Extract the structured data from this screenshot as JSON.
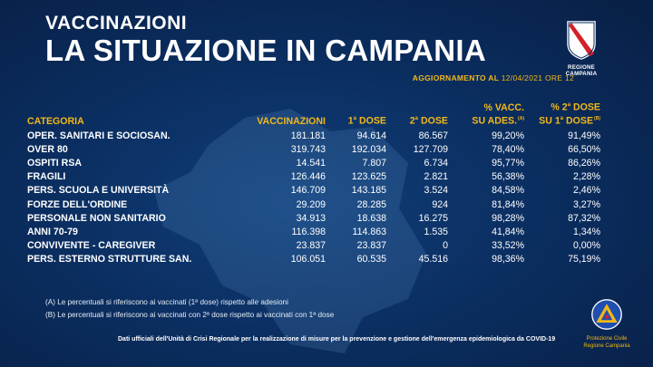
{
  "header": {
    "kicker": "VACCINAZIONI",
    "title": "LA SITUAZIONE IN CAMPANIA",
    "update_prefix": "AGGIORNAMENTO AL",
    "update_date": "12/04/2021 ORE 12"
  },
  "logo": {
    "text": "REGIONE CAMPANIA"
  },
  "table": {
    "headers": {
      "categoria": "CATEGORIA",
      "vaccinazioni": "VACCINAZIONI",
      "dose1_num": "1",
      "dose1_sup": "a",
      "dose1_label": "DOSE",
      "dose2_num": "2",
      "dose2_sup": "a",
      "dose2_label": "DOSE",
      "pct_vacc_line1": "% VACC.",
      "pct_vacc_line2": "SU ADES.",
      "pct_vacc_note": "(A)",
      "pct_dose_line1_pre": "% 2",
      "pct_dose_line1_sup": "a",
      "pct_dose_line1_post": " DOSE",
      "pct_dose_line2_pre": "SU 1",
      "pct_dose_line2_sup": "a",
      "pct_dose_line2_post": " DOSE",
      "pct_dose_note": "(B)"
    },
    "rows": [
      {
        "categoria": "OPER. SANITARI E SOCIOSAN.",
        "vaccinazioni": "181.181",
        "dose1": "94.614",
        "dose2": "86.567",
        "pct_vacc": "99,20%",
        "pct_dose": "91,49%"
      },
      {
        "categoria": "OVER 80",
        "vaccinazioni": "319.743",
        "dose1": "192.034",
        "dose2": "127.709",
        "pct_vacc": "78,40%",
        "pct_dose": "66,50%"
      },
      {
        "categoria": "OSPITI RSA",
        "vaccinazioni": "14.541",
        "dose1": "7.807",
        "dose2": "6.734",
        "pct_vacc": "95,77%",
        "pct_dose": "86,26%"
      },
      {
        "categoria": "FRAGILI",
        "vaccinazioni": "126.446",
        "dose1": "123.625",
        "dose2": "2.821",
        "pct_vacc": "56,38%",
        "pct_dose": "2,28%"
      },
      {
        "categoria": "PERS. SCUOLA E UNIVERSITÀ",
        "vaccinazioni": "146.709",
        "dose1": "143.185",
        "dose2": "3.524",
        "pct_vacc": "84,58%",
        "pct_dose": "2,46%"
      },
      {
        "categoria": "FORZE DELL'ORDINE",
        "vaccinazioni": "29.209",
        "dose1": "28.285",
        "dose2": "924",
        "pct_vacc": "81,84%",
        "pct_dose": "3,27%"
      },
      {
        "categoria": "PERSONALE NON SANITARIO",
        "vaccinazioni": "34.913",
        "dose1": "18.638",
        "dose2": "16.275",
        "pct_vacc": "98,28%",
        "pct_dose": "87,32%"
      },
      {
        "categoria": "ANNI 70-79",
        "vaccinazioni": "116.398",
        "dose1": "114.863",
        "dose2": "1.535",
        "pct_vacc": "41,84%",
        "pct_dose": "1,34%"
      },
      {
        "categoria": "CONVIVENTE - CAREGIVER",
        "vaccinazioni": "23.837",
        "dose1": "23.837",
        "dose2": "0",
        "pct_vacc": "33,52%",
        "pct_dose": "0,00%"
      },
      {
        "categoria": "PERS. ESTERNO STRUTTURE SAN.",
        "vaccinazioni": "106.051",
        "dose1": "60.535",
        "dose2": "45.516",
        "pct_vacc": "98,36%",
        "pct_dose": "75,19%"
      }
    ]
  },
  "footnotes": {
    "a": "(A) Le percentuali si riferiscono ai vaccinati (1ª dose) rispetto alle adesioni",
    "b": "(B) Le percentuali si riferiscono ai vaccinati con 2ª dose rispetto ai vaccinati con 1ª dose"
  },
  "source": "Dati ufficiali dell'Unità di Crisi Regionale per la realizzazione di misure per la prevenzione e gestione dell'emergenza epidemiologica da COVID-19",
  "pc_logo": {
    "line1": "Protezione Civile",
    "line2": "Regione Campania"
  },
  "colors": {
    "background": "#0b2f62",
    "accent": "#f2b818",
    "text": "#ffffff"
  }
}
